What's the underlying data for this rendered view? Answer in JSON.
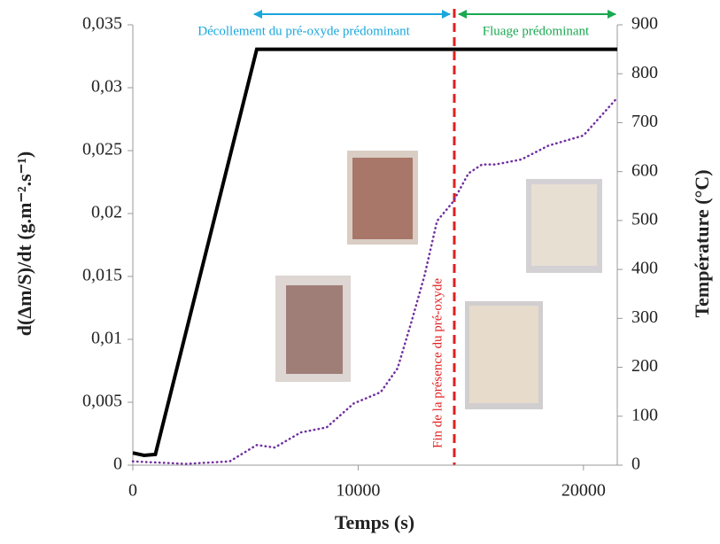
{
  "chart_data": {
    "type": "line",
    "xlabel": "Temps (s)",
    "ylabel": "d(Δm/S)/dt (g.m⁻².s⁻¹)",
    "y2label": "Température (°C)",
    "annotations": [
      "Décollement du pré-oxyde prédominant",
      "Fluage prédominant",
      "Fin de la présence du pré-oxyde"
    ],
    "xlim": [
      0,
      21500
    ],
    "xticks": [
      0,
      10000,
      20000
    ],
    "ylim": [
      0,
      0.035
    ],
    "yticks": [
      0,
      {
        "value": 0.005,
        "label": "0,005"
      },
      {
        "value": 0.01,
        "label": "0,01"
      },
      {
        "value": 0.015,
        "label": "0,015"
      },
      {
        "value": 0.02,
        "label": "0,02"
      },
      {
        "value": 0.025,
        "label": "0,025"
      },
      {
        "value": 0.03,
        "label": "0,03"
      },
      {
        "value": 0.035,
        "label": "0,035"
      }
    ],
    "y2lim": [
      0,
      900
    ],
    "y2ticks": [
      0,
      100,
      200,
      300,
      400,
      500,
      600,
      700,
      800,
      900
    ],
    "series": [
      {
        "color": "#000000",
        "axis": "y2",
        "style": "solid",
        "x": [
          0,
          500,
          1000,
          5500,
          21500
        ],
        "values": [
          25,
          20,
          22,
          850,
          850
        ]
      },
      {
        "color": "#7030a0",
        "axis": "y",
        "style": "dotted",
        "x": [
          0,
          2350,
          4300,
          5500,
          6300,
          7450,
          8600,
          9800,
          11000,
          11750,
          12350,
          12950,
          13500,
          14200,
          14900,
          15500,
          16100,
          17250,
          18450,
          20000,
          21450
        ],
        "values": [
          0.0003,
          0.0001,
          0.0003,
          0.0016,
          0.0014,
          0.0026,
          0.003,
          0.0049,
          0.0058,
          0.0077,
          0.0113,
          0.0151,
          0.0194,
          0.0209,
          0.0232,
          0.0239,
          0.0239,
          0.0243,
          0.0254,
          0.0262,
          0.0291
        ]
      }
    ]
  }
}
